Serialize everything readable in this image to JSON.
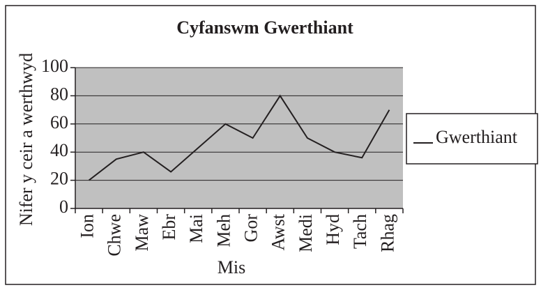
{
  "chart_data": {
    "type": "line",
    "title": "Cyfanswm Gwerthiant",
    "x_label": "Mis",
    "y_label": "Nifer y ceir a werthwyd",
    "categories": [
      "Ion",
      "Chwe",
      "Maw",
      "Ebr",
      "Mai",
      "Meh",
      "Gor",
      "Awst",
      "Medi",
      "Hyd",
      "Tach",
      "Rhag"
    ],
    "series": [
      {
        "name": "Gwerthiant",
        "color": "#231f20",
        "values": [
          20,
          35,
          40,
          26,
          43,
          60,
          50,
          80,
          50,
          40,
          36,
          70
        ]
      }
    ],
    "ylim": [
      0,
      100
    ],
    "yticks": [
      0,
      20,
      40,
      60,
      80,
      100
    ],
    "grid": true,
    "legend": "right"
  }
}
